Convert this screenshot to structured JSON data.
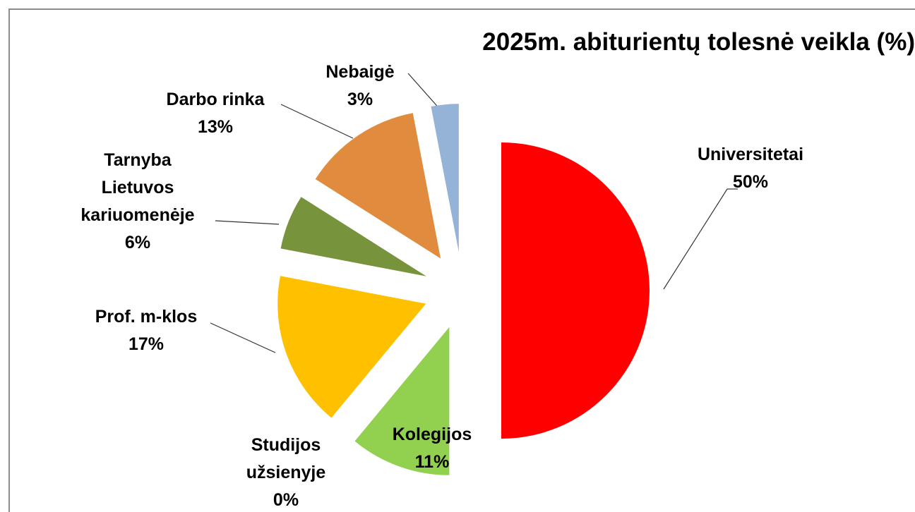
{
  "chart_data": {
    "type": "pie",
    "title": "2025m. abiturientų tolesnė veikla (%)",
    "categories": [
      "Universitetai",
      "Kolegijos",
      "Studijos užsienyje",
      "Prof. m-klos",
      "Tarnyba Lietuvos kariuomenėje",
      "Darbo rinka",
      "Nebaigė"
    ],
    "values": [
      50,
      11,
      0,
      17,
      6,
      13,
      3
    ],
    "value_labels": [
      "50%",
      "11%",
      "0%",
      "17%",
      "6%",
      "13%",
      "3%"
    ],
    "colors": [
      "#ff0000",
      "#92d050",
      "#4bacc6",
      "#ffc000",
      "#77933c",
      "#e08b3e",
      "#95b3d7"
    ]
  }
}
